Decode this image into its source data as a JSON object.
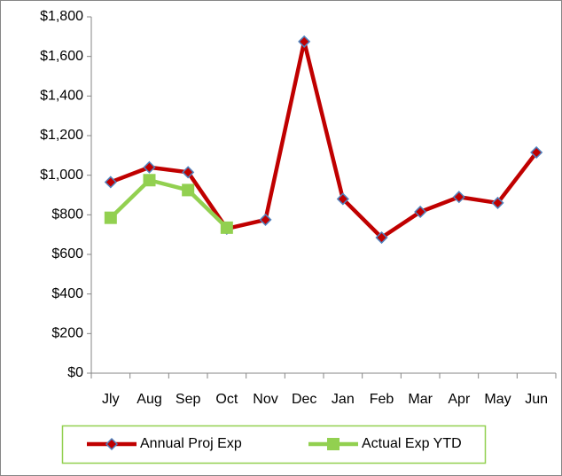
{
  "chart_data": {
    "type": "line",
    "categories": [
      "Jly",
      "Aug",
      "Sep",
      "Oct",
      "Nov",
      "Dec",
      "Jan",
      "Feb",
      "Mar",
      "Apr",
      "May",
      "Jun"
    ],
    "series": [
      {
        "name": "Annual Proj Exp",
        "color": "#c00000",
        "marker_color": "#4f81bd",
        "marker": "diamond",
        "values": [
          965,
          1040,
          1015,
          730,
          775,
          1675,
          880,
          685,
          815,
          890,
          860,
          1115
        ]
      },
      {
        "name": "Actual Exp YTD",
        "color": "#92d050",
        "marker": "square",
        "values": [
          785,
          975,
          925,
          735,
          null,
          null,
          null,
          null,
          null,
          null,
          null,
          null
        ]
      }
    ],
    "ylim": [
      0,
      1800
    ],
    "yticks": [
      {
        "value": 0,
        "label": "$0"
      },
      {
        "value": 200,
        "label": "$200"
      },
      {
        "value": 400,
        "label": "$400"
      },
      {
        "value": 600,
        "label": "$600"
      },
      {
        "value": 800,
        "label": "$800"
      },
      {
        "value": 1000,
        "label": "$1,000"
      },
      {
        "value": 1200,
        "label": "$1,200"
      },
      {
        "value": 1400,
        "label": "$1,400"
      },
      {
        "value": 1600,
        "label": "$1,600"
      },
      {
        "value": 1800,
        "label": "$1,800"
      }
    ],
    "grid": false,
    "legend": "bottom"
  }
}
